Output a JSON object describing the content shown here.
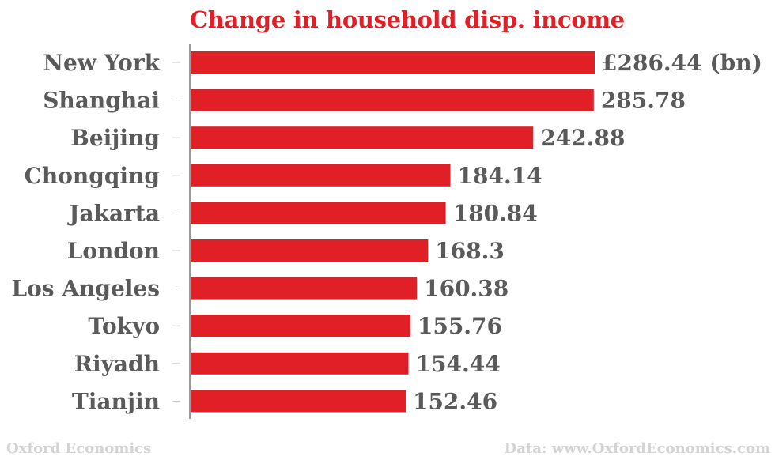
{
  "chart_data": {
    "type": "bar",
    "orientation": "horizontal",
    "title": "Change in household disp. income",
    "categories": [
      "New York",
      "Shanghai",
      "Beijing",
      "Chongqing",
      "Jakarta",
      "London",
      "Los Angeles",
      "Tokyo",
      "Riyadh",
      "Tianjin"
    ],
    "values": [
      286.44,
      285.78,
      242.88,
      184.14,
      180.84,
      168.3,
      160.38,
      155.76,
      154.44,
      152.46
    ],
    "value_labels": [
      "£286.44 (bn)",
      "285.78",
      "242.88",
      "184.14",
      "180.84",
      "168.3",
      "160.38",
      "155.76",
      "154.44",
      "152.46"
    ],
    "xlim": [
      0,
      286.44
    ],
    "grid": false,
    "bar_color": "#e01f26",
    "label_color": "#5a5a5a"
  },
  "footer": {
    "source_left": "Oxford Economics",
    "source_right": "Data: www.OxfordEconomics.com"
  }
}
